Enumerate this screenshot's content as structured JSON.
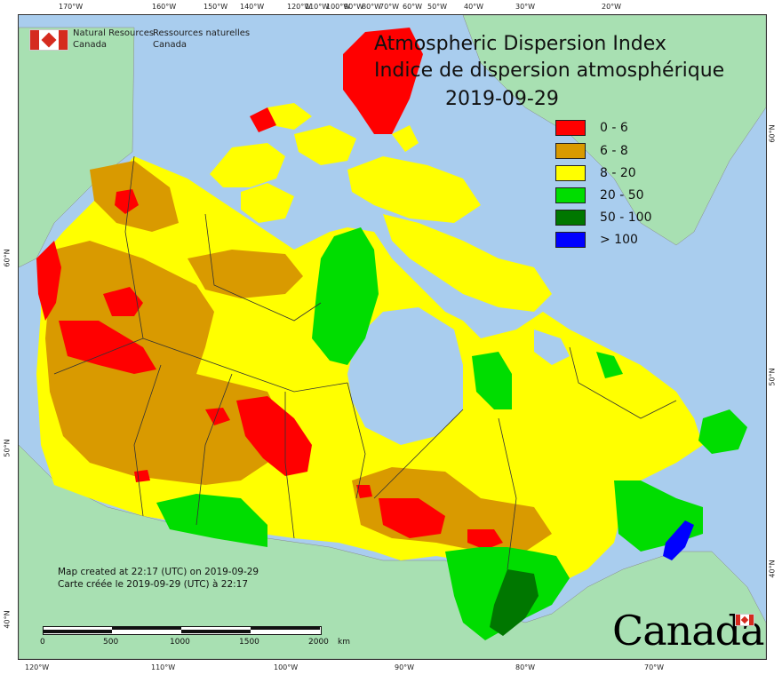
{
  "title": {
    "line1": "Atmospheric Dispersion Index",
    "line2": "Indice de dispersion atmosphérique",
    "date": "2019-09-29"
  },
  "agency": {
    "en_line1": "Natural Resources",
    "en_line2": "Canada",
    "fr_line1": "Ressources naturelles",
    "fr_line2": "Canada"
  },
  "legend": [
    {
      "label": "0 - 6",
      "color": "#ff0000"
    },
    {
      "label": "6 - 8",
      "color": "#d99a00"
    },
    {
      "label": "8 - 20",
      "color": "#ffff00"
    },
    {
      "label": "20 - 50",
      "color": "#00dd00"
    },
    {
      "label": "50 - 100",
      "color": "#007700"
    },
    {
      "label": "> 100",
      "color": "#0000ff"
    }
  ],
  "credit": {
    "en": "Map created at 22:17 (UTC) on 2019-09-29",
    "fr": "Carte créée le 2019-09-29 (UTC) à 22:17"
  },
  "scale": {
    "labels": [
      "0",
      "500",
      "1000",
      "1500",
      "2000"
    ],
    "unit": "km"
  },
  "wordmark": "Canada",
  "top_ticks": [
    "170°W",
    "160°W",
    "150°W",
    "140°W",
    "120°W",
    "110°W",
    "100°W",
    "90°W",
    "80°W",
    "70°W",
    "60°W",
    "50°W",
    "40°W",
    "30°W",
    "20°W"
  ],
  "bottom_ticks": [
    "120°W",
    "110°W",
    "100°W",
    "90°W",
    "80°W",
    "70°W"
  ],
  "left_ticks": [
    "60°N",
    "50°N",
    "40°N"
  ],
  "right_ticks": [
    "60°N",
    "50°N",
    "40°N"
  ],
  "colors": {
    "ocean": "#a9cdee",
    "foreign_land": "#a8e0b2",
    "boundary": "#333333"
  }
}
